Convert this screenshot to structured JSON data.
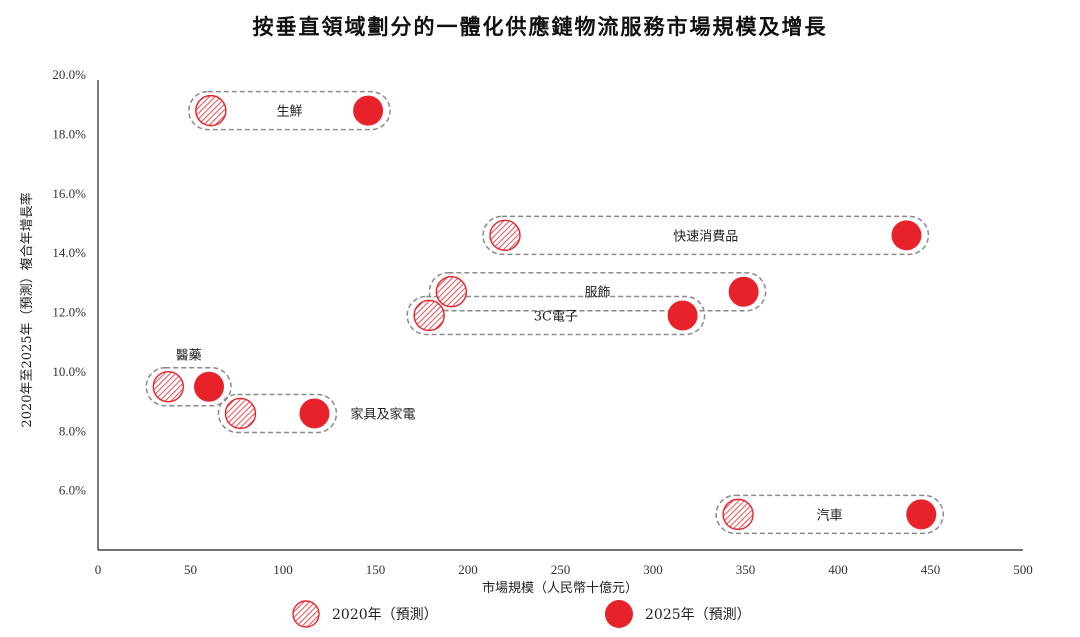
{
  "chart_data": {
    "type": "scatter",
    "title": "按垂直領域劃分的一體化供應鏈物流服務市場規模及增長",
    "xlabel": "市場規模（人民幣十億元）",
    "ylabel": "2020年至2025年（預測）複合年增長率",
    "xlim": [
      0,
      500
    ],
    "ylim": [
      4.0,
      20.0
    ],
    "xticks": [
      "0",
      "50",
      "100",
      "150",
      "200",
      "250",
      "300",
      "350",
      "400",
      "450",
      "500"
    ],
    "yticks": [
      "6.0%",
      "8.0%",
      "10.0%",
      "12.0%",
      "14.0%",
      "16.0%",
      "18.0%",
      "20.0%"
    ],
    "series": [
      {
        "name": "2020年（預測）",
        "style": "hatched",
        "color": "#e8222a"
      },
      {
        "name": "2025年（預測）",
        "style": "solid",
        "color": "#e8222a"
      }
    ],
    "segments": [
      {
        "label": "生鮮",
        "cagr": 18.8,
        "x2020": 61,
        "x2025": 146,
        "label_pos": "inside"
      },
      {
        "label": "快速消費品",
        "cagr": 14.6,
        "x2020": 220,
        "x2025": 437,
        "label_pos": "inside"
      },
      {
        "label": "服飾",
        "cagr": 12.7,
        "x2020": 191,
        "x2025": 349,
        "label_pos": "inside"
      },
      {
        "label": "3C電子",
        "cagr": 11.9,
        "x2020": 179,
        "x2025": 316,
        "label_pos": "inside"
      },
      {
        "label": "醫藥",
        "cagr": 9.5,
        "x2020": 38,
        "x2025": 60,
        "label_pos": "above"
      },
      {
        "label": "家具及家電",
        "cagr": 8.6,
        "x2020": 77,
        "x2025": 117,
        "label_pos": "right"
      },
      {
        "label": "汽車",
        "cagr": 5.2,
        "x2020": 346,
        "x2025": 445,
        "label_pos": "inside"
      }
    ]
  }
}
